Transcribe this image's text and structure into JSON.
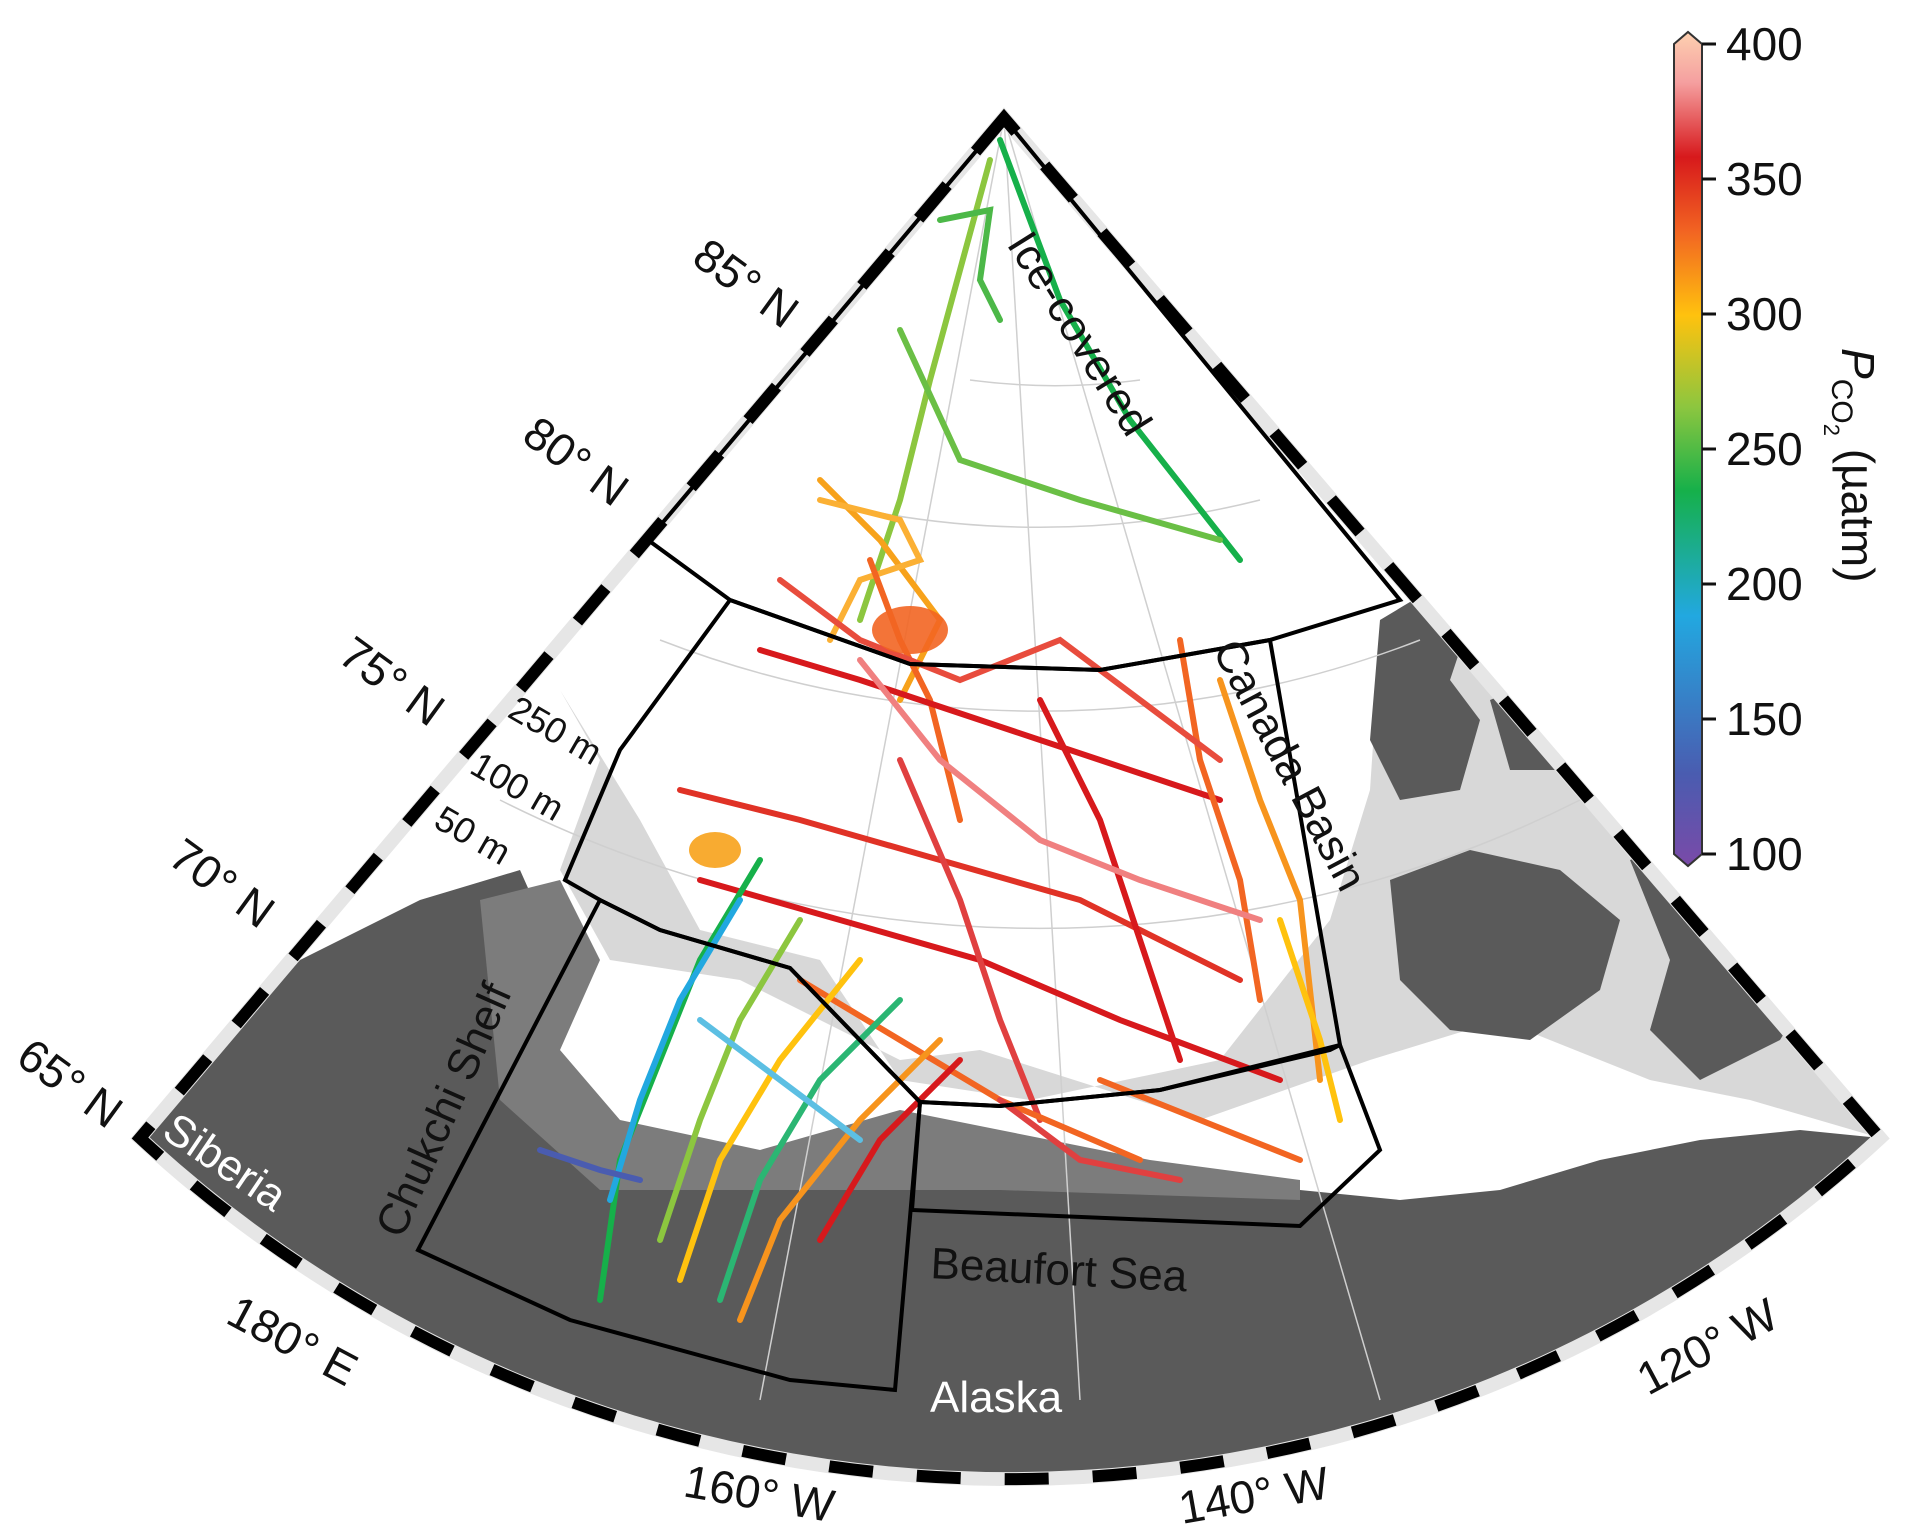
{
  "colors": {
    "land": "#5a5a5a",
    "shelf_dark": "#7c7c7c",
    "shelf_light": "#d8d8d8",
    "ocean": "#ffffff",
    "region_border": "#000000"
  },
  "lat_labels": [
    "85° N",
    "80° N",
    "75° N",
    "70° N",
    "65° N"
  ],
  "lon_labels": [
    "180° E",
    "160° W",
    "140° W",
    "120° W"
  ],
  "regions": {
    "ice_covered": "Ice-covered",
    "canada_basin": "Canada Basin",
    "chukchi_shelf": "Chukchi Shelf",
    "beaufort_sea": "Beaufort Sea"
  },
  "places": {
    "siberia": "Siberia",
    "alaska": "Alaska"
  },
  "depth_contours": [
    "250 m",
    "100 m",
    "50 m"
  ],
  "colorbar": {
    "label_main": "P",
    "label_sub": "CO",
    "label_sub2": "2",
    "label_unit": " (µatm)",
    "min": 100,
    "max": 400,
    "ticks": [
      "400",
      "350",
      "300",
      "250",
      "200",
      "150",
      "100"
    ],
    "stops": [
      "#7a4aa8",
      "#4a5cb0",
      "#22a8e0",
      "#16b04a",
      "#8cc63f",
      "#ffc20e",
      "#f26522",
      "#d7191c",
      "#f5a0a0",
      "#fdd0b0"
    ]
  }
}
